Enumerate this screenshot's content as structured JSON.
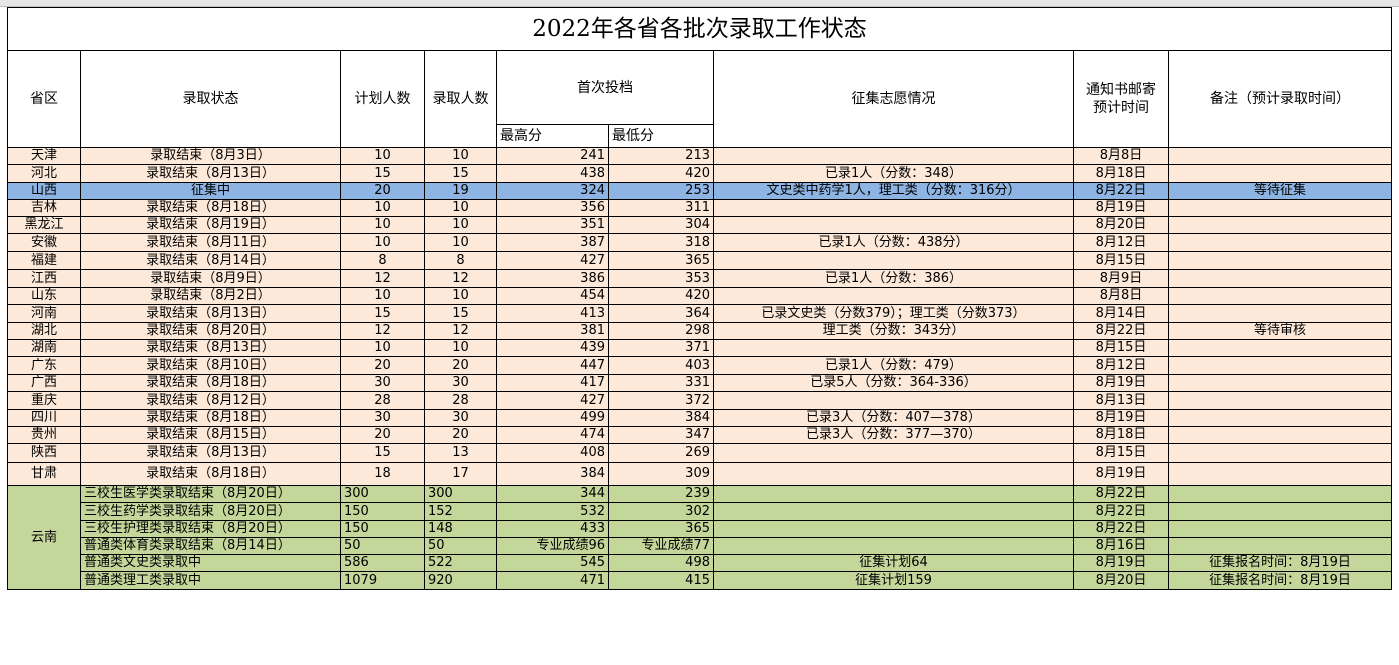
{
  "title": "2022年各省各批次录取工作状态",
  "headers": {
    "province": "省区",
    "status": "录取状态",
    "plan": "计划人数",
    "admitted": "录取人数",
    "first_batch": "首次投档",
    "max_score": "最高分",
    "min_score": "最低分",
    "supplement": "征集志愿情况",
    "notice_line1": "通知书邮寄",
    "notice_line2": "预计时间",
    "remark": "备注（预计录取时间）"
  },
  "rows": [
    {
      "province": "天津",
      "status": "录取结束（8月3日）",
      "plan": "10",
      "admitted": "10",
      "max": "241",
      "min": "213",
      "supplement": "",
      "notice": "8月8日",
      "remark": ""
    },
    {
      "province": "河北",
      "status": "录取结束（8月13日）",
      "plan": "15",
      "admitted": "15",
      "max": "438",
      "min": "420",
      "supplement": "已录1人（分数：348）",
      "notice": "8月18日",
      "remark": ""
    },
    {
      "province": "山西",
      "status": "征集中",
      "plan": "20",
      "admitted": "19",
      "max": "324",
      "min": "253",
      "supplement": "文史类中药学1人，理工类（分数：316分）",
      "notice": "8月22日",
      "remark": "等待征集"
    },
    {
      "province": "吉林",
      "status": "录取结束（8月18日）",
      "plan": "10",
      "admitted": "10",
      "max": "356",
      "min": "311",
      "supplement": "",
      "notice": "8月19日",
      "remark": ""
    },
    {
      "province": "黑龙江",
      "status": "录取结束（8月19日）",
      "plan": "10",
      "admitted": "10",
      "max": "351",
      "min": "304",
      "supplement": "",
      "notice": "8月20日",
      "remark": ""
    },
    {
      "province": "安徽",
      "status": "录取结束（8月11日）",
      "plan": "10",
      "admitted": "10",
      "max": "387",
      "min": "318",
      "supplement": "已录1人（分数：438分）",
      "notice": "8月12日",
      "remark": ""
    },
    {
      "province": "福建",
      "status": "录取结束（8月14日）",
      "plan": "8",
      "admitted": "8",
      "max": "427",
      "min": "365",
      "supplement": "",
      "notice": "8月15日",
      "remark": ""
    },
    {
      "province": "江西",
      "status": "录取结束（8月9日）",
      "plan": "12",
      "admitted": "12",
      "max": "386",
      "min": "353",
      "supplement": "已录1人（分数：386）",
      "notice": "8月9日",
      "remark": ""
    },
    {
      "province": "山东",
      "status": "录取结束（8月2日）",
      "plan": "10",
      "admitted": "10",
      "max": "454",
      "min": "420",
      "supplement": "",
      "notice": "8月8日",
      "remark": ""
    },
    {
      "province": "河南",
      "status": "录取结束（8月13日）",
      "plan": "15",
      "admitted": "15",
      "max": "413",
      "min": "364",
      "supplement": "已录文史类（分数379）；理工类（分数373）",
      "notice": "8月14日",
      "remark": ""
    },
    {
      "province": "湖北",
      "status": "录取结束（8月20日）",
      "plan": "12",
      "admitted": "12",
      "max": "381",
      "min": "298",
      "supplement": "理工类（分数：343分）",
      "notice": "8月22日",
      "remark": "等待审核"
    },
    {
      "province": "湖南",
      "status": "录取结束（8月13日）",
      "plan": "10",
      "admitted": "10",
      "max": "439",
      "min": "371",
      "supplement": "",
      "notice": "8月15日",
      "remark": ""
    },
    {
      "province": "广东",
      "status": "录取结束（8月10日）",
      "plan": "20",
      "admitted": "20",
      "max": "447",
      "min": "403",
      "supplement": "已录1人（分数：479）",
      "notice": "8月12日",
      "remark": ""
    },
    {
      "province": "广西",
      "status": "录取结束（8月18日）",
      "plan": "30",
      "admitted": "30",
      "max": "417",
      "min": "331",
      "supplement": "已录5人（分数：364-336）",
      "notice": "8月19日",
      "remark": ""
    },
    {
      "province": "重庆",
      "status": "录取结束（8月12日）",
      "plan": "28",
      "admitted": "28",
      "max": "427",
      "min": "372",
      "supplement": "",
      "notice": "8月13日",
      "remark": ""
    },
    {
      "province": "四川",
      "status": "录取结束（8月18日）",
      "plan": "30",
      "admitted": "30",
      "max": "499",
      "min": "384",
      "supplement": "已录3人（分数：407—378）",
      "notice": "8月19日",
      "remark": ""
    },
    {
      "province": "贵州",
      "status": "录取结束（8月15日）",
      "plan": "20",
      "admitted": "20",
      "max": "474",
      "min": "347",
      "supplement": "已录3人（分数：377—370）",
      "notice": "8月18日",
      "remark": ""
    },
    {
      "province": "陕西",
      "status": "录取结束（8月13日）",
      "plan": "15",
      "admitted": "13",
      "max": "408",
      "min": "269",
      "supplement": "",
      "notice": "8月15日",
      "remark": ""
    },
    {
      "province": "甘肃",
      "status": "录取结束（8月18日）",
      "plan": "18",
      "admitted": "17",
      "max": "384",
      "min": "309",
      "supplement": "",
      "notice": "8月19日",
      "remark": ""
    }
  ],
  "yunnan": {
    "province": "云南",
    "rows": [
      {
        "status": "三校生医学类录取结束（8月20日）",
        "plan": "300",
        "admitted": "300",
        "max": "344",
        "min": "239",
        "supplement": "",
        "notice": "8月22日",
        "remark": ""
      },
      {
        "status": "三校生药学类录取结束（8月20日）",
        "plan": "150",
        "admitted": "152",
        "max": "532",
        "min": "302",
        "supplement": "",
        "notice": "8月22日",
        "remark": ""
      },
      {
        "status": "三校生护理类录取结束（8月20日）",
        "plan": "150",
        "admitted": "148",
        "max": "433",
        "min": "365",
        "supplement": "",
        "notice": "8月22日",
        "remark": ""
      },
      {
        "status": "普通类体育类录取结束（8月14日）",
        "plan": "50",
        "admitted": "50",
        "max": "专业成绩96",
        "min": "专业成绩77",
        "supplement": "",
        "notice": "8月16日",
        "remark": ""
      },
      {
        "status": "普通类文史类录取中",
        "plan": "586",
        "admitted": "522",
        "max": "545",
        "min": "498",
        "supplement": "征集计划64",
        "notice": "8月19日",
        "remark": "征集报名时间：8月19日"
      },
      {
        "status": "普通类理工类录取中",
        "plan": "1079",
        "admitted": "920",
        "max": "471",
        "min": "415",
        "supplement": "征集计划159",
        "notice": "8月20日",
        "remark": "征集报名时间：8月19日"
      }
    ]
  }
}
